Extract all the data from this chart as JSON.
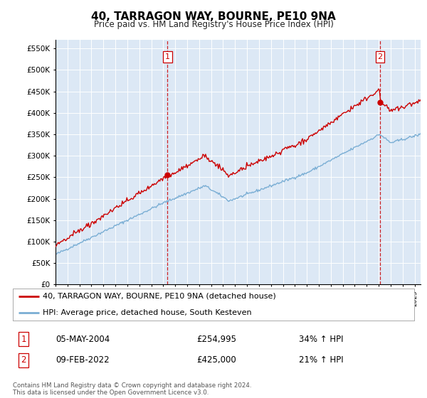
{
  "title": "40, TARRAGON WAY, BOURNE, PE10 9NA",
  "subtitle": "Price paid vs. HM Land Registry's House Price Index (HPI)",
  "legend_line1": "40, TARRAGON WAY, BOURNE, PE10 9NA (detached house)",
  "legend_line2": "HPI: Average price, detached house, South Kesteven",
  "sale1_date": "05-MAY-2004",
  "sale1_price": 254995,
  "sale1_hpi": "34% ↑ HPI",
  "sale1_x": 2004.35,
  "sale2_date": "09-FEB-2022",
  "sale2_price": 425000,
  "sale2_hpi": "21% ↑ HPI",
  "sale2_x": 2022.12,
  "background_color": "#dce8f5",
  "red_line_color": "#cc0000",
  "blue_line_color": "#7aaed4",
  "ylim_min": 0,
  "ylim_max": 570000,
  "xlim_min": 1995.0,
  "xlim_max": 2025.5,
  "footer": "Contains HM Land Registry data © Crown copyright and database right 2024.\nThis data is licensed under the Open Government Licence v3.0."
}
